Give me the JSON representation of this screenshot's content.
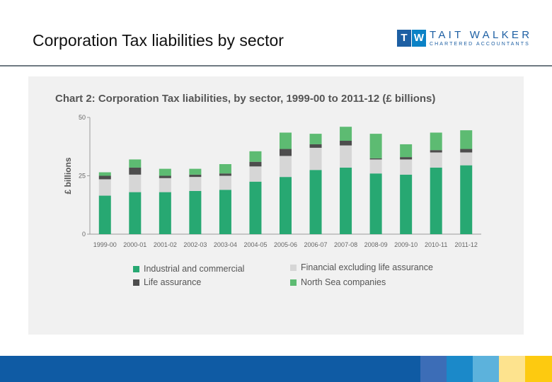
{
  "slide": {
    "title": "Corporation Tax liabilities by sector"
  },
  "logo": {
    "letter_t": "T",
    "letter_w": "W",
    "name": "TAIT WALKER",
    "subtitle": "CHARTERED ACCOUNTANTS"
  },
  "colors": {
    "industrial": "#27a872",
    "financial": "#d6d6d6",
    "life": "#4d4d4d",
    "north_sea": "#5dbb72",
    "footer_main": "#0f5ba4",
    "footer_blocks": [
      "#3c6db7",
      "#1b89c9",
      "#5cb2dc",
      "#fde38e",
      "#fdca10"
    ]
  },
  "chart_data": {
    "type": "bar",
    "stacked": true,
    "title": "Chart 2: Corporation Tax liabilities, by sector, 1999-00 to 2011-12 (£ billions)",
    "xlabel": "",
    "ylabel": "£ billions",
    "ylim": [
      0,
      50
    ],
    "yticks": [
      "0",
      "25",
      "50"
    ],
    "grid": false,
    "legend_position": "bottom",
    "categories": [
      "1999-00",
      "2000-01",
      "2001-02",
      "2002-03",
      "2003-04",
      "2004-05",
      "2005-06",
      "2006-07",
      "2007-08",
      "2008-09",
      "2009-10",
      "2010-11",
      "2011-12"
    ],
    "series": [
      {
        "name": "Industrial and commercial",
        "color_key": "industrial",
        "values": [
          16.5,
          18,
          18,
          18.5,
          19,
          22.5,
          24.5,
          27.5,
          28.5,
          26,
          25.5,
          28.5,
          29.5
        ]
      },
      {
        "name": "Financial excluding life assurance",
        "color_key": "financial",
        "values": [
          7,
          7.5,
          6,
          6,
          6,
          6.5,
          9,
          9.5,
          9.5,
          6,
          6.5,
          6.5,
          5.5
        ]
      },
      {
        "name": "Life assurance",
        "color_key": "life",
        "values": [
          1.5,
          3,
          1,
          1,
          1,
          2,
          3,
          1.5,
          2,
          0.5,
          1,
          1,
          1.5
        ]
      },
      {
        "name": "North Sea companies",
        "color_key": "north_sea",
        "values": [
          1.5,
          3.5,
          3,
          2.5,
          4,
          4.5,
          7,
          4.5,
          6,
          10.5,
          5.5,
          7.5,
          8
        ]
      }
    ]
  }
}
